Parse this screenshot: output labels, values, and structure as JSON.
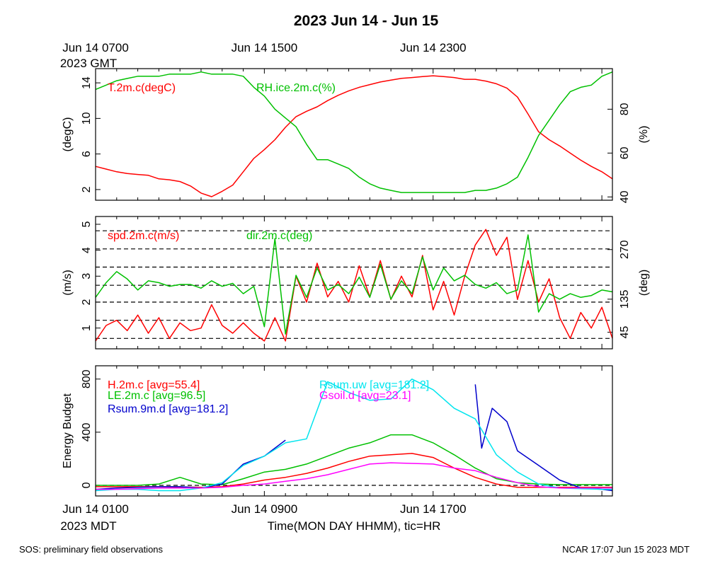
{
  "title": "2023 Jun 14 - Jun 15",
  "top_time_axis": {
    "labels": [
      {
        "x_hours": 0,
        "text": "Jun 14 0700",
        "sub": "2023 GMT"
      },
      {
        "x_hours": 8,
        "text": "Jun 14 1500",
        "sub": ""
      },
      {
        "x_hours": 16,
        "text": "Jun 14 2300",
        "sub": ""
      }
    ]
  },
  "bottom_time_axis": {
    "labels": [
      {
        "x_hours": 0,
        "text": "Jun 14 0100",
        "sub": "2023 MDT"
      },
      {
        "x_hours": 8,
        "text": "Jun 14 0900",
        "sub": ""
      },
      {
        "x_hours": 16,
        "text": "Jun 14 1700",
        "sub": ""
      }
    ],
    "xlabel": "Time(MON DAY HHMM), tic=HR"
  },
  "footer": {
    "left": "SOS: preliminary field observations",
    "right": "NCAR 17:07 Jun 15 2023 MDT"
  },
  "chart_data": [
    {
      "type": "line",
      "xlim": [
        0,
        24.5
      ],
      "left_axis": {
        "label": "(degC)",
        "lim": [
          0.8,
          15.6
        ],
        "ticks": [
          2,
          6,
          10,
          14
        ],
        "color": "#000000"
      },
      "right_axis": {
        "label": "(%)",
        "lim": [
          38.5,
          98.5
        ],
        "ticks": [
          40,
          60,
          80
        ],
        "color": "#000000"
      },
      "series": [
        {
          "name": "T.2m.c(degC)",
          "axis": "left",
          "color": "#ff0000",
          "x": [
            0,
            0.5,
            1,
            1.5,
            2,
            2.5,
            3,
            3.5,
            4,
            4.5,
            5,
            5.5,
            6,
            6.5,
            7,
            7.5,
            8,
            8.5,
            9,
            9.5,
            10,
            10.5,
            11,
            11.5,
            12,
            12.5,
            13,
            13.5,
            14,
            14.5,
            15,
            15.5,
            16,
            16.5,
            17,
            17.5,
            18,
            18.5,
            19,
            19.5,
            20,
            20.5,
            21,
            21.5,
            22,
            22.5,
            23,
            23.5,
            24,
            24.5
          ],
          "y": [
            4.6,
            4.3,
            4.0,
            3.8,
            3.7,
            3.6,
            3.2,
            3.1,
            2.9,
            2.4,
            1.6,
            1.2,
            1.8,
            2.5,
            4.0,
            5.5,
            6.5,
            7.6,
            9.0,
            10.2,
            10.8,
            11.3,
            12.0,
            12.6,
            13.1,
            13.5,
            13.8,
            14.1,
            14.3,
            14.5,
            14.6,
            14.7,
            14.8,
            14.7,
            14.6,
            14.4,
            14.4,
            14.2,
            13.9,
            13.4,
            12.4,
            10.5,
            8.5,
            7.6,
            6.9,
            6.1,
            5.3,
            4.6,
            4.0,
            3.2
          ]
        },
        {
          "name": "RH.ice.2m.c(%)",
          "axis": "right",
          "color": "#00c000",
          "x": [
            0,
            0.5,
            1,
            1.5,
            2,
            2.5,
            3,
            3.5,
            4,
            4.5,
            5,
            5.5,
            6,
            6.5,
            7,
            7.5,
            8,
            8.5,
            9,
            9.5,
            10,
            10.5,
            11,
            11.5,
            12,
            12.5,
            13,
            13.5,
            14,
            14.5,
            15,
            15.5,
            16,
            16.5,
            17,
            17.5,
            18,
            18.5,
            19,
            19.5,
            20,
            20.5,
            21,
            21.5,
            22,
            22.5,
            23,
            23.5,
            24,
            24.5
          ],
          "y": [
            89,
            91,
            93,
            94,
            95,
            95,
            95,
            96,
            96,
            96,
            97,
            96,
            96,
            96,
            95,
            90,
            86,
            80,
            76,
            72,
            64,
            57,
            57,
            55,
            53,
            49,
            46,
            44,
            43,
            42,
            42,
            42,
            42,
            42,
            42,
            42,
            43,
            43,
            44,
            46,
            49,
            58,
            68,
            75,
            82,
            88,
            90,
            91,
            95,
            97
          ]
        }
      ]
    },
    {
      "type": "line",
      "xlim": [
        0,
        24.5
      ],
      "left_axis": {
        "label": "(m/s)",
        "lim": [
          0.2,
          5.3
        ],
        "ticks": [
          1,
          2,
          3,
          4,
          5
        ],
        "color": "#000000"
      },
      "right_axis": {
        "label": "(deg)",
        "lim": [
          0,
          360
        ],
        "ticks": [
          45,
          135,
          270
        ],
        "color": "#000000"
      },
      "dashed_lines": [
        0.6,
        1.3,
        2.0,
        2.65,
        3.35,
        4.05,
        4.75
      ],
      "series": [
        {
          "name": "spd.2m.c(m/s)",
          "axis": "left",
          "color": "#ff0000",
          "x": [
            0,
            0.5,
            1,
            1.5,
            2,
            2.5,
            3,
            3.5,
            4,
            4.5,
            5,
            5.5,
            6,
            6.5,
            7,
            7.5,
            8,
            8.5,
            9,
            9.5,
            10,
            10.5,
            11,
            11.5,
            12,
            12.5,
            13,
            13.5,
            14,
            14.5,
            15,
            15.5,
            16,
            16.5,
            17,
            17.5,
            18,
            18.5,
            19,
            19.5,
            20,
            20.5,
            21,
            21.5,
            22,
            22.5,
            23,
            23.5,
            24,
            24.5
          ],
          "y": [
            0.5,
            1.1,
            1.3,
            0.9,
            1.5,
            0.8,
            1.4,
            0.6,
            1.2,
            0.9,
            1.0,
            1.9,
            1.1,
            0.8,
            1.2,
            0.8,
            0.5,
            1.4,
            0.5,
            3.0,
            2.0,
            3.5,
            2.2,
            2.8,
            2.0,
            3.4,
            2.2,
            3.6,
            2.1,
            3.0,
            2.2,
            3.8,
            1.7,
            2.8,
            1.5,
            3.0,
            4.2,
            4.8,
            3.8,
            4.5,
            2.1,
            3.6,
            2.0,
            2.9,
            1.4,
            0.6,
            1.6,
            1.0,
            1.8,
            0.6
          ]
        },
        {
          "name": "dir.2m.c(deg)",
          "axis": "right",
          "color": "#00c000",
          "x": [
            0,
            0.5,
            1,
            1.5,
            2,
            2.5,
            3,
            3.5,
            4,
            4.5,
            5,
            5.5,
            6,
            6.5,
            7,
            7.5,
            8,
            8.5,
            9,
            9.5,
            10,
            10.5,
            11,
            11.5,
            12,
            12.5,
            13,
            13.5,
            14,
            14.5,
            15,
            15.5,
            16,
            16.5,
            17,
            17.5,
            18,
            18.5,
            19,
            19.5,
            20,
            20.5,
            21,
            21.5,
            22,
            22.5,
            23,
            23.5,
            24,
            24.5
          ],
          "y": [
            140,
            180,
            210,
            190,
            160,
            185,
            180,
            170,
            175,
            175,
            165,
            185,
            170,
            178,
            150,
            170,
            60,
            300,
            40,
            200,
            140,
            220,
            160,
            175,
            150,
            195,
            140,
            230,
            135,
            185,
            150,
            250,
            160,
            220,
            185,
            200,
            175,
            165,
            180,
            150,
            160,
            310,
            100,
            150,
            135,
            150,
            140,
            145,
            160,
            155
          ]
        }
      ]
    },
    {
      "type": "line",
      "xlim": [
        0,
        24.5
      ],
      "left_axis": {
        "label": "Energy Budget",
        "lim": [
          -80,
          900
        ],
        "ticks": [
          0,
          400,
          800
        ],
        "color": "#000000"
      },
      "dashed_lines": [
        0
      ],
      "series": [
        {
          "name": "H.2m.c",
          "legend_text": "H.2m.c [avg=55.4]",
          "color": "#ff0000",
          "x": [
            0,
            1,
            2,
            3,
            4,
            5,
            6,
            7,
            8,
            9,
            10,
            11,
            12,
            13,
            14,
            15,
            16,
            17,
            18,
            19,
            20,
            21,
            22,
            23,
            24,
            24.5
          ],
          "y": [
            -10,
            -10,
            -10,
            -10,
            -12,
            -15,
            -10,
            10,
            40,
            60,
            90,
            130,
            180,
            220,
            230,
            240,
            210,
            130,
            60,
            10,
            -15,
            -15,
            -15,
            -15,
            -15,
            -15
          ]
        },
        {
          "name": "LE.2m.c",
          "legend_text": "LE.2m.c [avg=96.5]",
          "color": "#00c000",
          "x": [
            0,
            1,
            2,
            3,
            4,
            5,
            6,
            7,
            8,
            9,
            10,
            11,
            12,
            13,
            14,
            15,
            16,
            17,
            18,
            19,
            20,
            21,
            22,
            23,
            24,
            24.5
          ],
          "y": [
            0,
            0,
            0,
            10,
            60,
            10,
            5,
            50,
            100,
            120,
            160,
            220,
            280,
            320,
            380,
            380,
            320,
            230,
            130,
            50,
            20,
            10,
            5,
            5,
            5,
            5
          ]
        },
        {
          "name": "Rsum.9m.d",
          "legend_text": "Rsum.9m.d [avg=181.2]",
          "color": "#0000cc",
          "x": [
            0,
            1,
            2,
            3,
            4,
            5,
            6,
            7,
            8,
            9
          ],
          "y": [
            -30,
            -20,
            -15,
            -10,
            -10,
            -20,
            10,
            160,
            220,
            340
          ],
          "x2": [
            18,
            18.3,
            18.8,
            19.5,
            20,
            21,
            22,
            23,
            24,
            24.5
          ],
          "y2": [
            760,
            280,
            580,
            480,
            260,
            150,
            40,
            -20,
            -30,
            -40
          ]
        },
        {
          "name": "Rsum.uw",
          "legend_text": "Rsum.uw [avg=181.2]",
          "color": "#00e5ee",
          "x": [
            0,
            1,
            2,
            3,
            4,
            5,
            6,
            7,
            8,
            9,
            10,
            11,
            12,
            13,
            14,
            15,
            16,
            17,
            18,
            19,
            20,
            21,
            22,
            23,
            24,
            24.5
          ],
          "y": [
            -40,
            -30,
            -30,
            -40,
            -40,
            -20,
            20,
            150,
            220,
            320,
            350,
            780,
            700,
            640,
            650,
            800,
            720,
            580,
            500,
            230,
            100,
            10,
            -20,
            -25,
            -30,
            -30
          ]
        },
        {
          "name": "Gsoil.d",
          "legend_text": "Gsoil.d [avg=23.1]",
          "color": "#ff00ff",
          "x": [
            0,
            1,
            2,
            3,
            4,
            5,
            6,
            7,
            8,
            9,
            10,
            11,
            12,
            13,
            14,
            15,
            16,
            17,
            18,
            19,
            20,
            21,
            22,
            23,
            24,
            24.5
          ],
          "y": [
            -30,
            -30,
            -25,
            -20,
            -20,
            -20,
            -15,
            0,
            10,
            30,
            50,
            80,
            120,
            160,
            170,
            165,
            160,
            130,
            110,
            60,
            20,
            -10,
            -20,
            -20,
            -20,
            -20
          ]
        }
      ]
    }
  ]
}
